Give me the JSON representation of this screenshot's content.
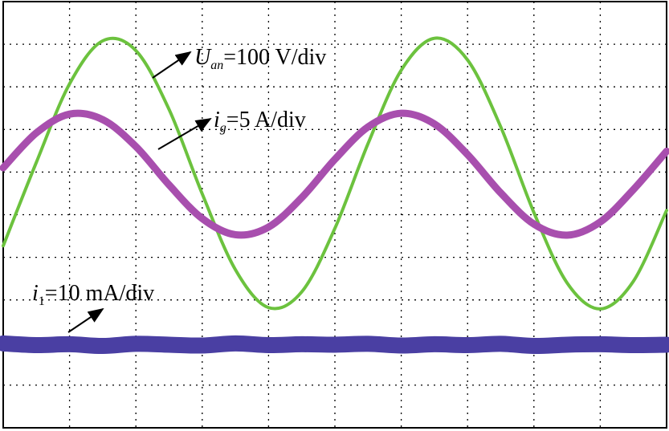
{
  "chart_data": {
    "type": "line",
    "x": [
      0,
      0.5,
      1,
      1.5,
      2,
      2.5,
      3,
      3.5,
      4,
      4.5,
      5,
      5.5,
      6,
      6.5,
      7,
      7.5,
      8,
      8.5,
      9,
      9.5,
      10
    ],
    "xlim": [
      0,
      10
    ],
    "ylim": [
      -5,
      5
    ],
    "grid": true,
    "series": [
      {
        "color": "#6cc23e",
        "label": {
          "symbol": "U",
          "subscript": "an",
          "text": "=100 V/div"
        },
        "values": [
          -0.73,
          1.23,
          3.07,
          4.08,
          3.85,
          2.47,
          0.49,
          -1.29,
          -2.18,
          -1.81,
          -0.32,
          1.67,
          3.39,
          4.14,
          3.63,
          2.06,
          0.05,
          -1.6,
          -2.21,
          -1.56,
          0.1
        ]
      },
      {
        "color": "#a84fae",
        "label": {
          "symbol": "i",
          "subscript": "g",
          "text": "=5 A/div"
        },
        "values": [
          1.1,
          1.92,
          2.36,
          2.23,
          1.6,
          0.7,
          -0.09,
          -0.47,
          -0.29,
          0.4,
          1.3,
          2.06,
          2.38,
          2.13,
          1.41,
          0.51,
          -0.22,
          -0.48,
          -0.17,
          0.59,
          1.49
        ]
      },
      {
        "color": "#4a3fa3",
        "label": {
          "symbol": "i",
          "subscript": "1",
          "text": "=10 mA/div"
        },
        "values": [
          -3.02,
          -3.06,
          -3.04,
          -3.08,
          -3.03,
          -3.05,
          -3.07,
          -3.02,
          -3.06,
          -3.04,
          -3.05,
          -3.03,
          -3.07,
          -3.04,
          -3.06,
          -3.03,
          -3.08,
          -3.05,
          -3.04,
          -3.06,
          -3.05
        ]
      }
    ]
  }
}
